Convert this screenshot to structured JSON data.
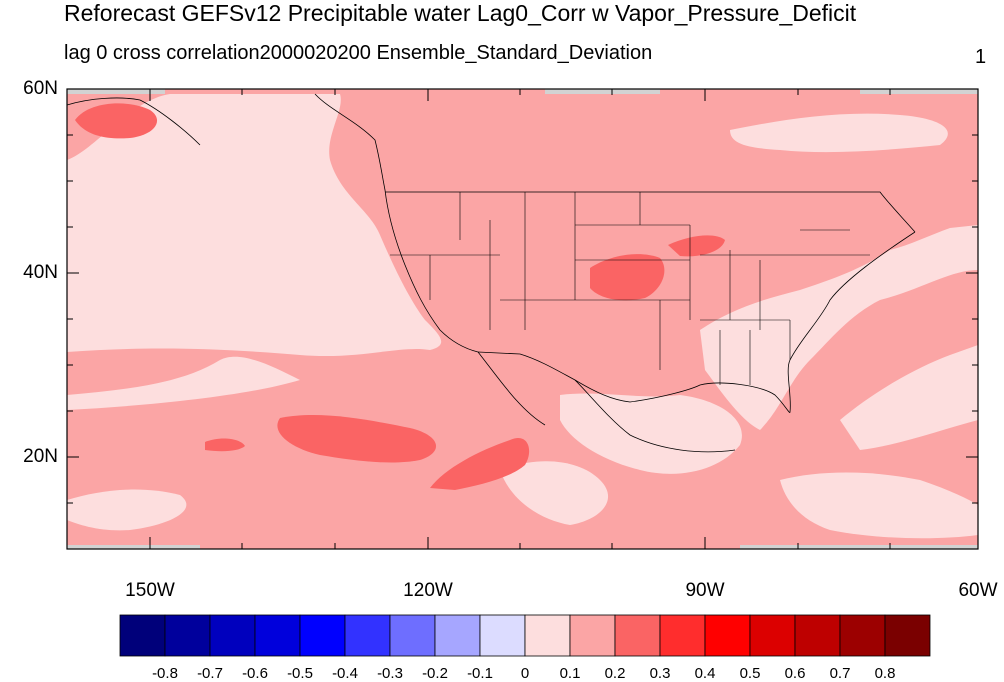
{
  "title": "Reforecast GEFSv12 Precipitable water Lag0_Corr w Vapor_Pressure_Deficit",
  "subtitle_left": "lag 0 cross correlation",
  "subtitle_date": "2000020200",
  "subtitle_right": "Ensemble_Standard_Deviation",
  "corner_label": "1",
  "map": {
    "lat_labels": [
      "60N",
      "40N",
      "20N"
    ],
    "lon_labels": [
      "150W",
      "120W",
      "90W",
      "60W"
    ],
    "colors": {
      "light_pink": "#FDDEDE",
      "pink": "#FBA5A5",
      "salmon": "#FA6464",
      "missing": "#D2D2D2",
      "boundary": "#000000"
    }
  },
  "colorbar": {
    "labels": [
      "-0.8",
      "-0.7",
      "-0.6",
      "-0.5",
      "-0.4",
      "-0.3",
      "-0.2",
      "-0.1",
      "0",
      "0.1",
      "0.2",
      "0.3",
      "0.4",
      "0.5",
      "0.6",
      "0.7",
      "0.8"
    ],
    "colors": [
      "#00007A",
      "#00009C",
      "#0000BE",
      "#0000DC",
      "#0000FF",
      "#3232FF",
      "#6E6EFF",
      "#A6A6FF",
      "#DCDCFF",
      "#FDDEDE",
      "#FBA5A5",
      "#FA6464",
      "#FF2D2D",
      "#FF0000",
      "#DC0000",
      "#BE0000",
      "#9C0000",
      "#7A0000"
    ]
  }
}
